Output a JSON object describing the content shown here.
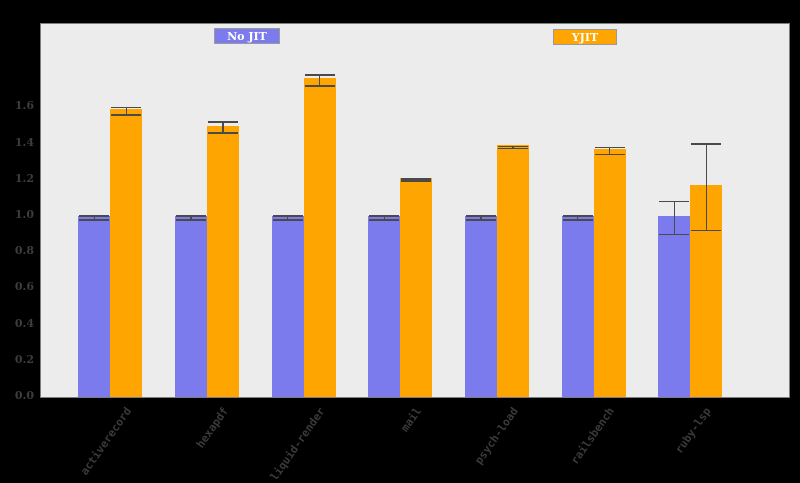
{
  "colors": {
    "background": "#000000",
    "plot_background": "#ececec",
    "plot_border": "#7d7d7d",
    "no_jit_bar": "#7b7bee",
    "yjit_bar": "#ffa502",
    "error_bar": "#4a4a4a",
    "tick_label": "#3d3d3d",
    "legend_text": "#ffffff"
  },
  "legend": {
    "items": [
      {
        "label": "No JIT",
        "color": "#7b7bee"
      },
      {
        "label": "YJIT",
        "color": "#ffa502"
      }
    ]
  },
  "chart_data": {
    "type": "bar",
    "title": "",
    "xlabel": "",
    "ylabel": "",
    "categories": [
      "activerecord",
      "hexapdf",
      "liquid-render",
      "mail",
      "psych-load",
      "railsbench",
      "ruby-lsp"
    ],
    "series": [
      {
        "name": "No JIT",
        "color": "#7b7bee",
        "values": [
          1.0,
          1.0,
          1.0,
          1.0,
          1.0,
          1.0,
          1.0
        ],
        "errors": [
          0.01,
          0.01,
          0.01,
          0.01,
          0.01,
          0.01,
          0.09
        ]
      },
      {
        "name": "YJIT",
        "color": "#ffa502",
        "values": [
          1.59,
          1.5,
          1.76,
          1.21,
          1.39,
          1.37,
          1.17
        ],
        "errors": [
          0.02,
          0.03,
          0.03,
          0.005,
          0.005,
          0.02,
          0.24
        ]
      }
    ],
    "yticks": [
      "0.0",
      "0.2",
      "0.4",
      "0.6",
      "0.8",
      "1.0",
      "1.2",
      "1.4",
      "1.6"
    ],
    "ylim": [
      0.0,
      2.07
    ],
    "grid": false,
    "legend_position": "top-inside",
    "error_bars": true
  }
}
